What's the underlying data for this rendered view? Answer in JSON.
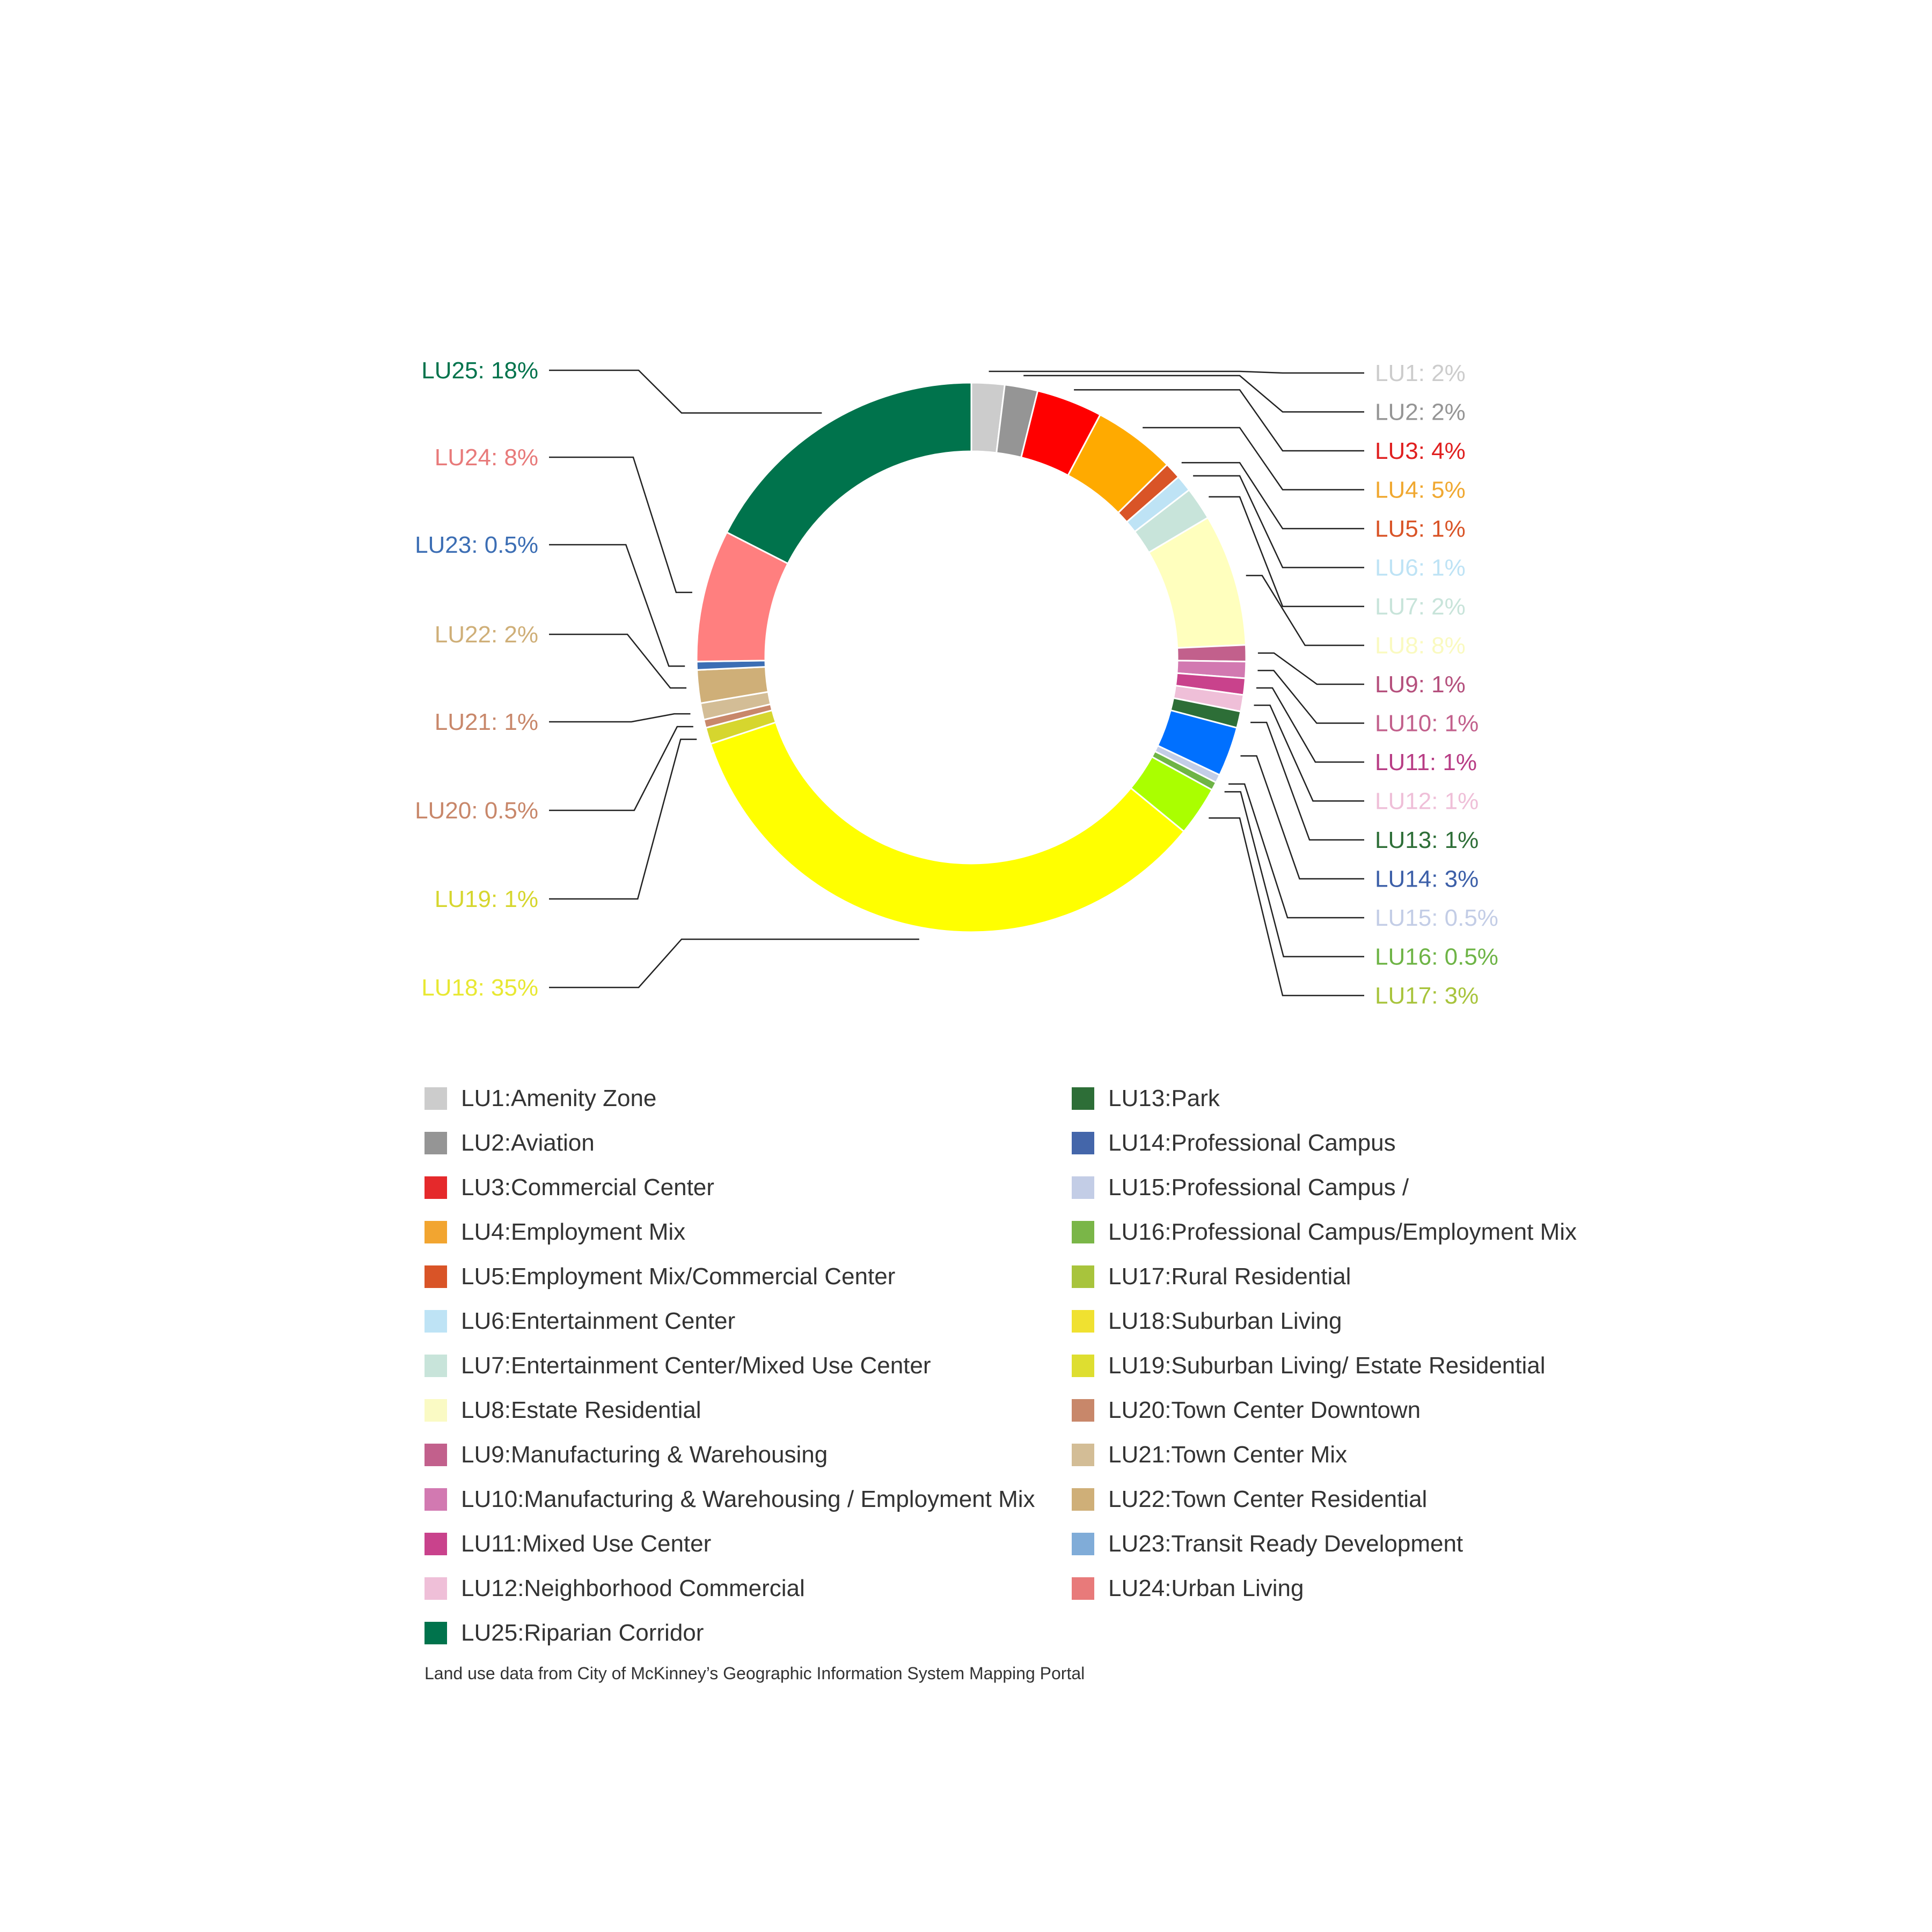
{
  "chart_data": {
    "type": "pie",
    "variant": "donut",
    "slices": [
      {
        "name": "LU1",
        "label": "LU1: 2%",
        "value": 2,
        "color": "#cccccc"
      },
      {
        "name": "LU2",
        "label": "LU2: 2%",
        "value": 2,
        "color": "#959595"
      },
      {
        "name": "LU3",
        "label": "LU3: 4%",
        "value": 4,
        "color": "#ff0000"
      },
      {
        "name": "LU4",
        "label": "LU4: 5%",
        "value": 5,
        "color": "#ffaa00"
      },
      {
        "name": "LU5",
        "label": "LU5: 1%",
        "value": 1,
        "color": "#d95427"
      },
      {
        "name": "LU6",
        "label": "LU6: 1%",
        "value": 1,
        "color": "#bee3f5"
      },
      {
        "name": "LU7",
        "label": "LU7: 2%",
        "value": 2,
        "color": "#c8e4da"
      },
      {
        "name": "LU8",
        "label": "LU8: 8%",
        "value": 8,
        "color": "#ffffbe"
      },
      {
        "name": "LU9",
        "label": "LU9: 1%",
        "value": 1,
        "color": "#c2608c"
      },
      {
        "name": "LU10",
        "label": "LU10: 1%",
        "value": 1,
        "color": "#d279b1"
      },
      {
        "name": "LU11",
        "label": "LU11: 1%",
        "value": 1,
        "color": "#c9428c"
      },
      {
        "name": "LU12",
        "label": "LU12: 1%",
        "value": 1,
        "color": "#efbfd8"
      },
      {
        "name": "LU13",
        "label": "LU13: 1%",
        "value": 1,
        "color": "#2d6e37"
      },
      {
        "name": "LU14",
        "label": "LU14: 3%",
        "value": 3,
        "color": "#0070ff"
      },
      {
        "name": "LU15",
        "label": "LU15: 0.5%",
        "value": 0.5,
        "color": "#c3cde6"
      },
      {
        "name": "LU16",
        "label": "LU16: 0.5%",
        "value": 0.5,
        "color": "#6eb446"
      },
      {
        "name": "LU17",
        "label": "LU17: 3%",
        "value": 3,
        "color": "#aaff00"
      },
      {
        "name": "LU18",
        "label": "LU18: 35%",
        "value": 35,
        "color": "#ffff00"
      },
      {
        "name": "LU19",
        "label": "LU19: 1%",
        "value": 1,
        "color": "#d6d62e"
      },
      {
        "name": "LU20",
        "label": "LU20: 0.5%",
        "value": 0.5,
        "color": "#c8876a"
      },
      {
        "name": "LU21",
        "label": "LU21: 1%",
        "value": 1,
        "color": "#d3bd96"
      },
      {
        "name": "LU22",
        "label": "LU22: 2%",
        "value": 2,
        "color": "#cfaf78"
      },
      {
        "name": "LU23",
        "label": "LU23: 0.5%",
        "value": 0.5,
        "color": "#3c6eb4"
      },
      {
        "name": "LU24",
        "label": "LU24: 8%",
        "value": 8,
        "color": "#ff7f7f"
      },
      {
        "name": "LU25",
        "label": "LU25: 18%",
        "value": 18,
        "color": "#00734c"
      }
    ],
    "label_colors": {
      "LU1": "#cccccc",
      "LU2": "#959595",
      "LU3": "#e02020",
      "LU4": "#f0a830",
      "LU5": "#d95427",
      "LU6": "#bee3f5",
      "LU7": "#c8e4da",
      "LU8": "#fafac0",
      "LU9": "#b5507d",
      "LU10": "#c2608c",
      "LU11": "#b83d85",
      "LU12": "#efbfd8",
      "LU13": "#2d6e37",
      "LU14": "#3c5fa8",
      "LU15": "#c3cde6",
      "LU16": "#6eb446",
      "LU17": "#a8c43c",
      "LU18": "#e8e832",
      "LU19": "#d6d62e",
      "LU20": "#c8876a",
      "LU21": "#c8876a",
      "LU22": "#cfaf78",
      "LU23": "#3c6eb4",
      "LU24": "#e87a7a",
      "LU25": "#00734c"
    }
  },
  "legend": {
    "left": [
      {
        "text": "LU1:Amenity Zone",
        "color": "#cccccc"
      },
      {
        "text": "LU2:Aviation",
        "color": "#959595"
      },
      {
        "text": "LU3:Commercial Center",
        "color": "#e5292b"
      },
      {
        "text": "LU4:Employment Mix",
        "color": "#f2a530"
      },
      {
        "text": "LU5:Employment Mix/Commercial Center",
        "color": "#d95427"
      },
      {
        "text": "LU6:Entertainment Center",
        "color": "#bee3f5"
      },
      {
        "text": "LU7:Entertainment Center/Mixed Use Center",
        "color": "#c8e4da"
      },
      {
        "text": "LU8:Estate Residential",
        "color": "#fafac4"
      },
      {
        "text": "LU9:Manufacturing & Warehousing",
        "color": "#c2608c"
      },
      {
        "text": "LU10:Manufacturing & Warehousing / Employment Mix",
        "color": "#d279b1"
      },
      {
        "text": "LU11:Mixed Use Center",
        "color": "#c9428c"
      },
      {
        "text": "LU12:Neighborhood Commercial",
        "color": "#efbfd8"
      },
      {
        "text": "LU25:Riparian Corridor",
        "color": "#00734c"
      }
    ],
    "right": [
      {
        "text": "LU13:Park",
        "color": "#2d6e37"
      },
      {
        "text": "LU14:Professional Campus",
        "color": "#4466aa"
      },
      {
        "text": "LU15:Professional Campus /",
        "color": "#c3cde6"
      },
      {
        "text": "LU16:Professional Campus/Employment Mix",
        "color": "#7ab648"
      },
      {
        "text": "LU17:Rural Residential",
        "color": "#a8c43c"
      },
      {
        "text": "LU18:Suburban Living",
        "color": "#f0e130"
      },
      {
        "text": "LU19:Suburban Living/ Estate Residential",
        "color": "#dede30"
      },
      {
        "text": "LU20:Town Center Downtown",
        "color": "#c8876a"
      },
      {
        "text": "LU21:Town Center Mix",
        "color": "#d3bd96"
      },
      {
        "text": "LU22:Town Center Residential",
        "color": "#cfaf78"
      },
      {
        "text": "LU23:Transit Ready Development",
        "color": "#80acd8"
      },
      {
        "text": "LU24:Urban Living",
        "color": "#e87a7a"
      }
    ]
  },
  "source_note": "Land use data from City of McKinney’s Geographic Information System Mapping Portal"
}
